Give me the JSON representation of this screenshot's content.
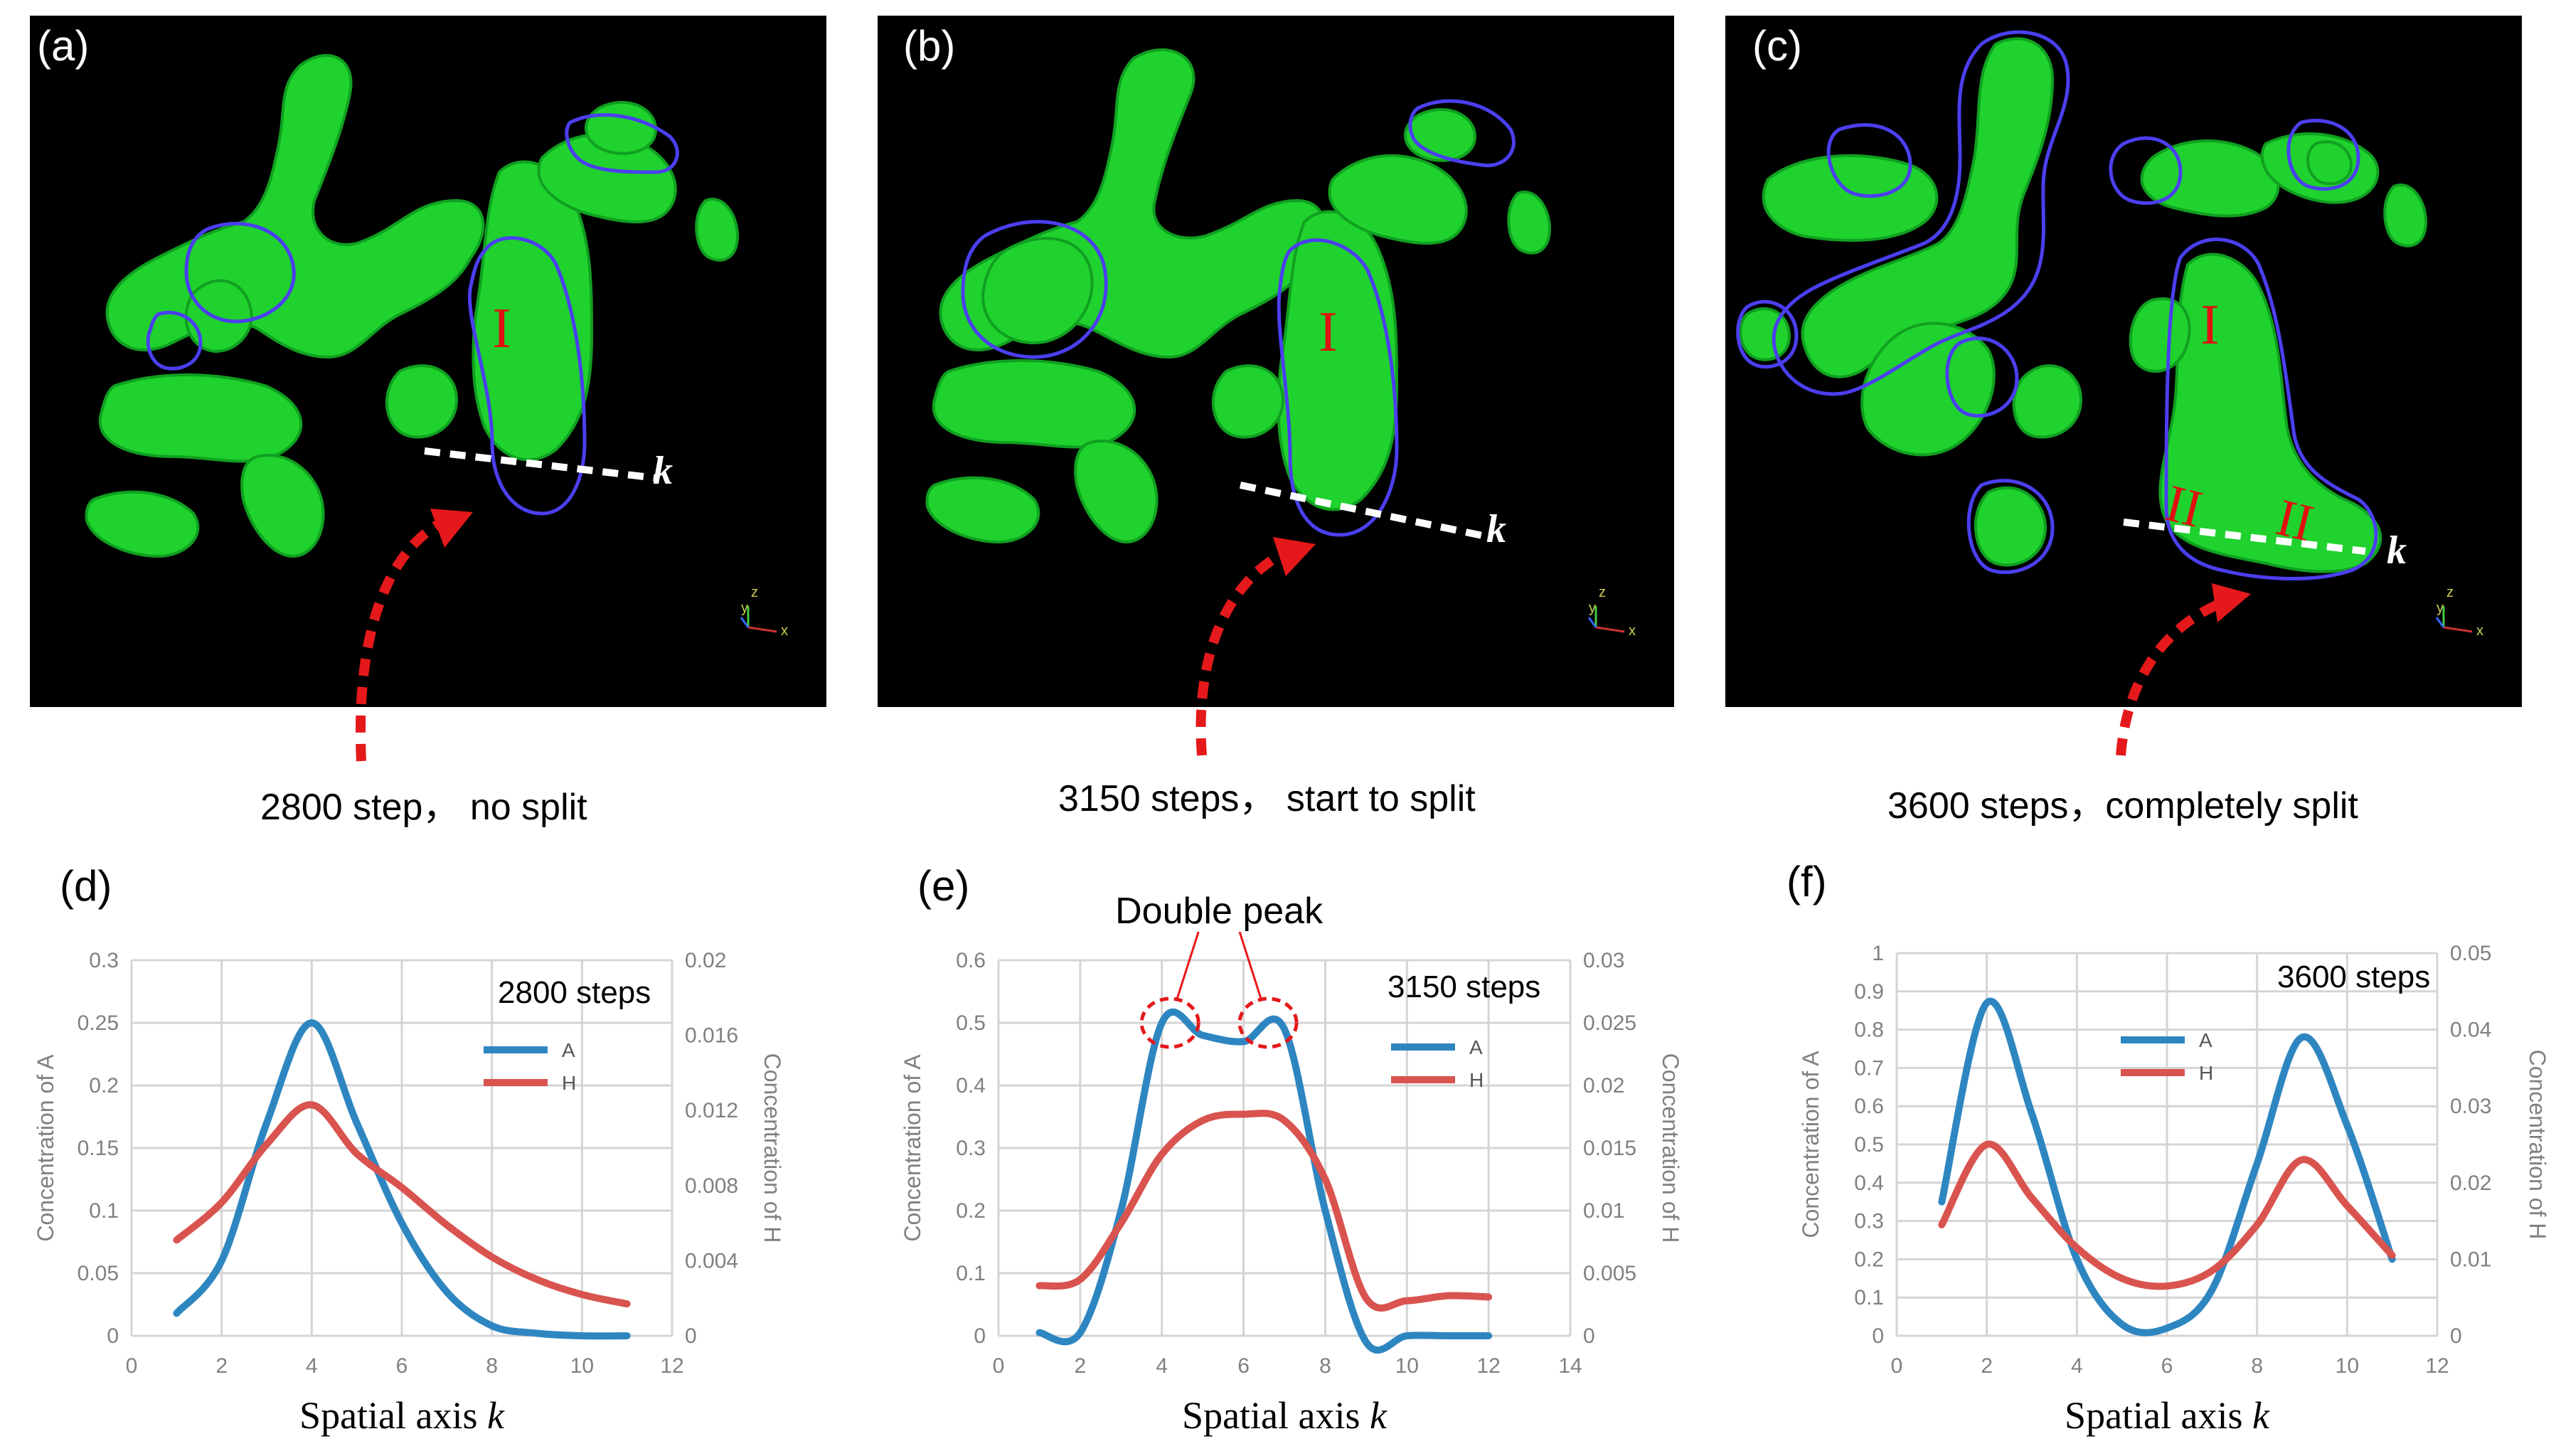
{
  "panels": {
    "a": {
      "label": "(a)",
      "caption": "2800 step，  no split"
    },
    "b": {
      "label": "(b)",
      "caption": "3150 steps，  start to split"
    },
    "c": {
      "label": "(c)",
      "caption": "3600 steps，completely split"
    }
  },
  "region_labels": {
    "I": "I",
    "II": "II"
  },
  "axis_marker": "k",
  "triad": {
    "z": "z",
    "y": "y",
    "x": "x"
  },
  "colors": {
    "A": "#2E86C1",
    "H": "#D9534F",
    "green": "#1FD22E",
    "contour": "#4B3FF0",
    "arrow": "#E5191B"
  },
  "chart_data": [
    {
      "panel": "(d)",
      "type": "line",
      "annotation": "2800 steps",
      "xlabel_text": "Spatial axis ",
      "xlabel_var": "k",
      "ylabel": "Concentration of A",
      "y2label": "Concentration of H",
      "xlim": [
        0,
        12
      ],
      "ylim": [
        0,
        0.3
      ],
      "y2lim": [
        0,
        0.02
      ],
      "xticks": [
        "0",
        "2",
        "4",
        "6",
        "8",
        "10",
        "12"
      ],
      "yticks": [
        "0",
        "0.05",
        "0.1",
        "0.15",
        "0.2",
        "0.25",
        "0.3"
      ],
      "y2ticks": [
        "0",
        "0.004",
        "0.008",
        "0.012",
        "0.016",
        "0.02"
      ],
      "series": [
        {
          "name": "A",
          "axis": "left",
          "color": "#2E86C1",
          "x": [
            1,
            2,
            3,
            4,
            5,
            6,
            7,
            8,
            9,
            10,
            11
          ],
          "y": [
            0.018,
            0.06,
            0.17,
            0.25,
            0.17,
            0.09,
            0.035,
            0.008,
            0.002,
            0.0,
            0.0
          ]
        },
        {
          "name": "H",
          "axis": "right",
          "color": "#D9534F",
          "x": [
            1,
            2,
            3,
            4,
            5,
            6,
            7,
            8,
            9,
            10,
            11
          ],
          "y": [
            0.0051,
            0.0071,
            0.0102,
            0.0123,
            0.0097,
            0.0079,
            0.0059,
            0.0042,
            0.003,
            0.0022,
            0.0017
          ]
        }
      ]
    },
    {
      "panel": "(e)",
      "type": "line",
      "annotation": "3150 steps",
      "callout": "Double peak",
      "xlabel_text": "Spatial axis ",
      "xlabel_var": "k",
      "ylabel": "Concentration of A",
      "y2label": "Concentration of H",
      "xlim": [
        0,
        14
      ],
      "ylim": [
        0,
        0.6
      ],
      "y2lim": [
        0,
        0.03
      ],
      "xticks": [
        "0",
        "2",
        "4",
        "6",
        "8",
        "10",
        "12",
        "14"
      ],
      "yticks": [
        "0",
        "0.1",
        "0.2",
        "0.3",
        "0.4",
        "0.5",
        "0.6"
      ],
      "y2ticks": [
        "0",
        "0.005",
        "0.01",
        "0.015",
        "0.02",
        "0.025",
        "0.03"
      ],
      "series": [
        {
          "name": "A",
          "axis": "left",
          "color": "#2E86C1",
          "x": [
            1,
            2,
            3,
            4,
            5,
            6,
            7,
            8,
            9,
            10,
            11,
            12
          ],
          "y": [
            0.005,
            0.005,
            0.2,
            0.5,
            0.48,
            0.47,
            0.49,
            0.2,
            -0.01,
            0.0,
            0.0,
            0.0
          ]
        },
        {
          "name": "H",
          "axis": "right",
          "color": "#D9534F",
          "x": [
            1,
            2,
            3,
            4,
            5,
            6,
            7,
            8,
            9,
            10,
            11,
            12
          ],
          "y": [
            0.004,
            0.0045,
            0.009,
            0.0145,
            0.0172,
            0.0177,
            0.0172,
            0.0125,
            0.003,
            0.0028,
            0.0032,
            0.0031
          ]
        }
      ]
    },
    {
      "panel": "(f)",
      "type": "line",
      "annotation": "3600 steps",
      "xlabel_text": "Spatial axis ",
      "xlabel_var": "k",
      "ylabel": "Concentration of A",
      "y2label": "Concentration of H",
      "xlim": [
        0,
        12
      ],
      "ylim": [
        0,
        1
      ],
      "y2lim": [
        0,
        0.05
      ],
      "xticks": [
        "0",
        "2",
        "4",
        "6",
        "8",
        "10",
        "12"
      ],
      "yticks": [
        "0",
        "0.1",
        "0.2",
        "0.3",
        "0.4",
        "0.5",
        "0.6",
        "0.7",
        "0.8",
        "0.9",
        "1"
      ],
      "y2ticks": [
        "0",
        "0.01",
        "0.02",
        "0.03",
        "0.04",
        "0.05"
      ],
      "series": [
        {
          "name": "A",
          "axis": "left",
          "color": "#2E86C1",
          "x": [
            1,
            2,
            3,
            4,
            5,
            6,
            7,
            8,
            9,
            10,
            11
          ],
          "y": [
            0.35,
            0.87,
            0.58,
            0.2,
            0.03,
            0.02,
            0.12,
            0.45,
            0.78,
            0.55,
            0.2
          ]
        },
        {
          "name": "H",
          "axis": "right",
          "color": "#D9534F",
          "x": [
            1,
            2,
            3,
            4,
            5,
            6,
            7,
            8,
            9,
            10,
            11
          ],
          "y": [
            0.0145,
            0.025,
            0.018,
            0.0115,
            0.0075,
            0.0065,
            0.0085,
            0.0145,
            0.023,
            0.017,
            0.0105
          ]
        }
      ]
    }
  ]
}
